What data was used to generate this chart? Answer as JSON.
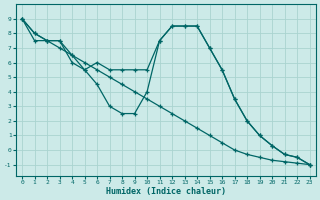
{
  "xlabel": "Humidex (Indice chaleur)",
  "bg_color": "#cceae8",
  "grid_color": "#aad4d0",
  "line_color": "#006666",
  "line1_y": [
    9.0,
    8.0,
    7.5,
    7.0,
    6.5,
    6.0,
    5.5,
    5.0,
    4.5,
    4.0,
    3.5,
    3.0,
    2.5,
    2.0,
    1.5,
    1.0,
    0.5,
    0.0,
    -0.3,
    -0.5,
    -0.7,
    -0.8,
    -0.9,
    -1.0
  ],
  "line2_y": [
    9.0,
    8.0,
    7.5,
    7.5,
    6.5,
    5.5,
    4.5,
    3.0,
    2.5,
    2.5,
    4.0,
    7.5,
    8.5,
    8.5,
    8.5,
    7.0,
    5.5,
    3.5,
    2.0,
    1.0,
    0.3,
    -0.3,
    -0.5,
    -1.0
  ],
  "line3_y": [
    9.0,
    7.5,
    7.5,
    7.5,
    6.0,
    5.5,
    6.0,
    5.5,
    5.5,
    5.5,
    5.5,
    7.5,
    8.5,
    8.5,
    8.5,
    7.0,
    5.5,
    3.5,
    2.0,
    1.0,
    0.3,
    -0.3,
    -0.5,
    -1.0
  ],
  "x": [
    0,
    1,
    2,
    3,
    4,
    5,
    6,
    7,
    8,
    9,
    10,
    11,
    12,
    13,
    14,
    15,
    16,
    17,
    18,
    19,
    20,
    21,
    22,
    23
  ],
  "ylim": [
    -1.8,
    10.0
  ],
  "xlim": [
    -0.5,
    23.5
  ],
  "yticks": [
    -1,
    0,
    1,
    2,
    3,
    4,
    5,
    6,
    7,
    8,
    9
  ],
  "xticks": [
    0,
    1,
    2,
    3,
    4,
    5,
    6,
    7,
    8,
    9,
    10,
    11,
    12,
    13,
    14,
    15,
    16,
    17,
    18,
    19,
    20,
    21,
    22,
    23
  ]
}
